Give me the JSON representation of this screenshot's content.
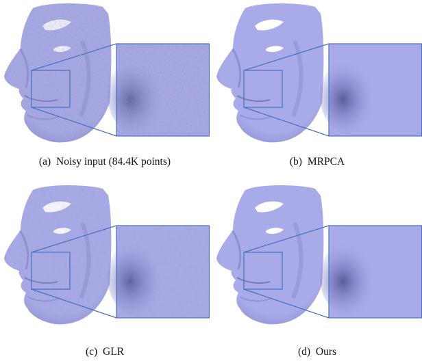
{
  "figure": {
    "panels": [
      {
        "label": "(a)",
        "caption": "Noisy input (84.4K points)",
        "style": "noisy"
      },
      {
        "label": "(b)",
        "caption": "MRPCA",
        "style": "smooth"
      },
      {
        "label": "(c)",
        "caption": "GLR",
        "style": "semi"
      },
      {
        "label": "(d)",
        "caption": "Ours",
        "style": "smooth"
      }
    ],
    "colors": {
      "mesh_fill": "#a9abe8",
      "mesh_shade": "#7c7fc4",
      "mesh_dark": "#4c4f8e",
      "zoom_box": "#4a6fc0",
      "background": "#ffffff"
    }
  }
}
